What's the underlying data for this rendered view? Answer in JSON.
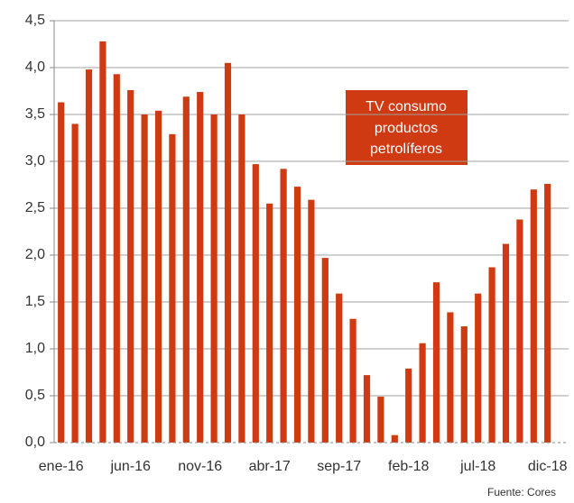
{
  "chart_data": {
    "type": "bar",
    "categories": [
      "ene-16",
      null,
      null,
      null,
      null,
      "jun-16",
      null,
      null,
      null,
      null,
      "nov-16",
      null,
      null,
      null,
      null,
      "abr-17",
      null,
      null,
      null,
      null,
      "sep-17",
      null,
      null,
      null,
      null,
      "feb-18",
      null,
      null,
      null,
      null,
      "jul-18",
      null,
      null,
      null,
      null,
      "dic-18"
    ],
    "values": [
      3.63,
      3.4,
      3.98,
      4.28,
      3.93,
      3.76,
      3.5,
      3.54,
      3.29,
      3.69,
      3.74,
      3.5,
      4.05,
      3.5,
      2.97,
      2.55,
      2.92,
      2.73,
      2.59,
      1.97,
      1.59,
      1.32,
      0.72,
      0.49,
      0.08,
      0.79,
      1.06,
      1.71,
      1.39,
      1.24,
      1.59,
      1.87,
      2.12,
      2.38,
      2.7,
      2.76
    ],
    "color": "#d03a12",
    "ylim": [
      0,
      4.5
    ],
    "yticks": [
      {
        "value": 0,
        "label": "0,0"
      },
      {
        "value": 0.5,
        "label": "0,5"
      },
      {
        "value": 1,
        "label": "1,0"
      },
      {
        "value": 1.5,
        "label": "1,5"
      },
      {
        "value": 2,
        "label": "2,0"
      },
      {
        "value": 2.5,
        "label": "2,5"
      },
      {
        "value": 3,
        "label": "3,0"
      },
      {
        "value": 3.5,
        "label": "3,5"
      },
      {
        "value": 4,
        "label": "4,0"
      },
      {
        "value": 4.5,
        "label": "4,5"
      }
    ],
    "grid": true,
    "annotation": [
      "TV consumo",
      "productos",
      "petrolíferos"
    ],
    "source": "Fuente: Cores"
  }
}
